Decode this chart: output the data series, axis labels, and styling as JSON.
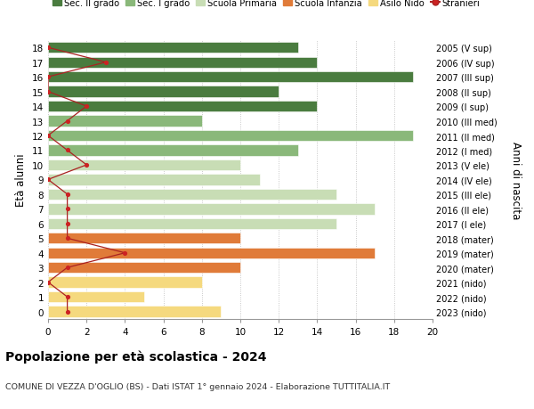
{
  "ages": [
    18,
    17,
    16,
    15,
    14,
    13,
    12,
    11,
    10,
    9,
    8,
    7,
    6,
    5,
    4,
    3,
    2,
    1,
    0
  ],
  "years": [
    "2005 (V sup)",
    "2006 (IV sup)",
    "2007 (III sup)",
    "2008 (II sup)",
    "2009 (I sup)",
    "2010 (III med)",
    "2011 (II med)",
    "2012 (I med)",
    "2013 (V ele)",
    "2014 (IV ele)",
    "2015 (III ele)",
    "2016 (II ele)",
    "2017 (I ele)",
    "2018 (mater)",
    "2019 (mater)",
    "2020 (mater)",
    "2021 (nido)",
    "2022 (nido)",
    "2023 (nido)"
  ],
  "bar_values": [
    13,
    14,
    19,
    12,
    14,
    8,
    19,
    13,
    10,
    11,
    15,
    17,
    15,
    10,
    17,
    10,
    8,
    5,
    9
  ],
  "stranieri": [
    0,
    3,
    0,
    0,
    2,
    1,
    0,
    1,
    2,
    0,
    1,
    1,
    1,
    1,
    4,
    1,
    0,
    1,
    1
  ],
  "colors": {
    "sec2": "#4a7c3f",
    "sec1": "#8ab87a",
    "primaria": "#c8ddb5",
    "infanzia": "#e07b39",
    "nido": "#f5d97e",
    "stranieri_dot": "#cc2222",
    "stranieri_line": "#aa2222"
  },
  "school_ranges": {
    "sec2": [
      14,
      18
    ],
    "sec1": [
      11,
      13
    ],
    "primaria": [
      6,
      10
    ],
    "infanzia": [
      3,
      5
    ],
    "nido": [
      0,
      2
    ]
  },
  "title": "Popolazione per età scolastica - 2024",
  "subtitle": "COMUNE DI VEZZA D'OGLIO (BS) - Dati ISTAT 1° gennaio 2024 - Elaborazione TUTTITALIA.IT",
  "ylabel_left": "Età alunni",
  "ylabel_right": "Anni di nascita",
  "xlim": [
    0,
    20
  ],
  "legend_labels": [
    "Sec. II grado",
    "Sec. I grado",
    "Scuola Primaria",
    "Scuola Infanzia",
    "Asilo Nido",
    "Stranieri"
  ],
  "bar_height": 0.75
}
